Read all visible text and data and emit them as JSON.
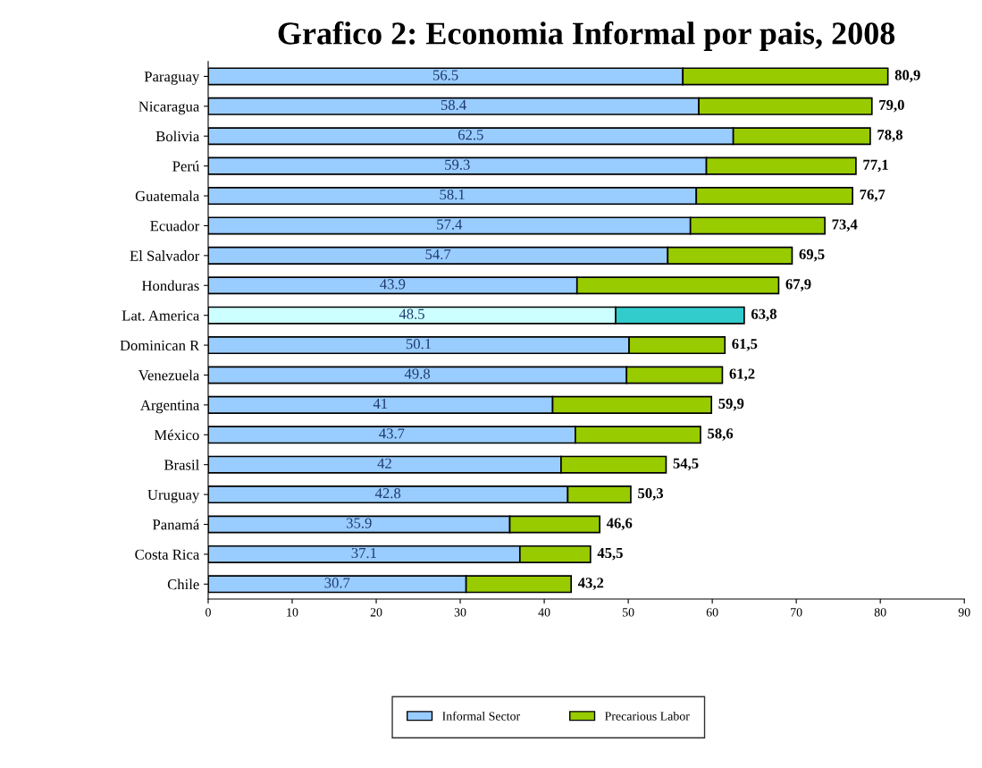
{
  "chart_data": {
    "type": "bar",
    "orientation": "horizontal",
    "stacked": true,
    "title": "Grafico 2: Economia Informal por pais, 2008",
    "categories": [
      "Paraguay",
      "Nicaragua",
      "Bolivia",
      "Perú",
      "Guatemala",
      "Ecuador",
      "El Salvador",
      "Honduras",
      "Lat. America",
      "Dominican R",
      "Venezuela",
      "Argentina",
      "México",
      "Brasil",
      "Uruguay",
      "Panamá",
      "Costa Rica",
      "Chile"
    ],
    "series": [
      {
        "name": "Informal Sector",
        "color": "#99ccff",
        "colors": [
          "#99ccff",
          "#99ccff",
          "#99ccff",
          "#99ccff",
          "#99ccff",
          "#99ccff",
          "#99ccff",
          "#99ccff",
          "#ccffff",
          "#99ccff",
          "#99ccff",
          "#99ccff",
          "#99ccff",
          "#99ccff",
          "#99ccff",
          "#99ccff",
          "#99ccff",
          "#99ccff"
        ],
        "values": [
          56.5,
          58.4,
          62.5,
          59.3,
          58.1,
          57.4,
          54.7,
          43.9,
          48.5,
          50.1,
          49.8,
          41,
          43.7,
          42,
          42.8,
          35.9,
          37.1,
          30.7
        ],
        "value_labels": [
          "56.5",
          "58.4",
          "62.5",
          "59.3",
          "58.1",
          "57.4",
          "54.7",
          "43.9",
          "48.5",
          "50.1",
          "49.8",
          "41",
          "43.7",
          "42",
          "42.8",
          "35.9",
          "37.1",
          "30.7"
        ]
      },
      {
        "name": "Precarious Labor",
        "color": "#99cc00",
        "colors": [
          "#99cc00",
          "#99cc00",
          "#99cc00",
          "#99cc00",
          "#99cc00",
          "#99cc00",
          "#99cc00",
          "#99cc00",
          "#33cccc",
          "#99cc00",
          "#99cc00",
          "#99cc00",
          "#99cc00",
          "#99cc00",
          "#99cc00",
          "#99cc00",
          "#99cc00",
          "#99cc00"
        ],
        "values": [
          24.4,
          20.6,
          16.3,
          17.8,
          18.6,
          16.0,
          14.8,
          24.0,
          15.3,
          11.4,
          11.4,
          18.9,
          14.9,
          12.5,
          7.5,
          10.7,
          8.4,
          12.5
        ]
      }
    ],
    "totals": [
      "80,9",
      "79,0",
      "78,8",
      "77,1",
      "76,7",
      "73,4",
      "69,5",
      "67,9",
      "63,8",
      "61,5",
      "61,2",
      "59,9",
      "58,6",
      "54,5",
      "50,3",
      "46,6",
      "45,5",
      "43,2"
    ],
    "xlim": [
      0,
      90
    ],
    "xticks": [
      0,
      10,
      20,
      30,
      40,
      50,
      60,
      70,
      80,
      90
    ],
    "grid": false,
    "legend": "bottom"
  }
}
